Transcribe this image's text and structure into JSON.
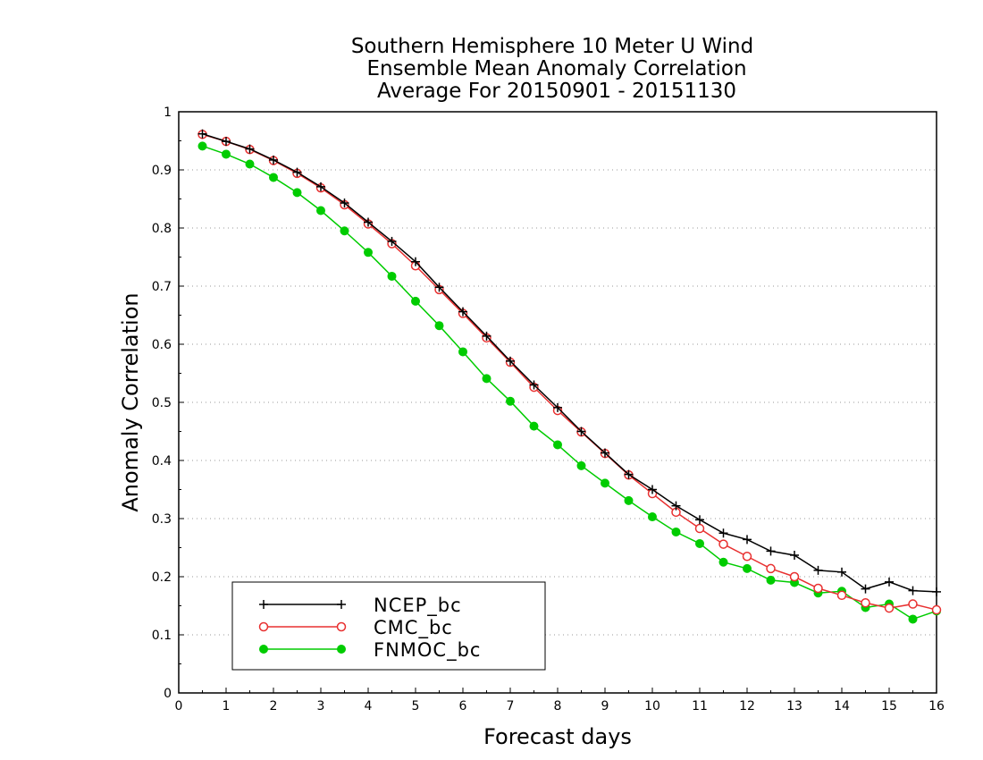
{
  "chart_data": {
    "type": "line",
    "title": [
      "Southern Hemisphere 10 Meter U Wind",
      "Ensemble Mean Anomaly Correlation",
      "Average For 20150901 - 20151130"
    ],
    "xlabel": "Forecast days",
    "ylabel": "Anomaly Correlation",
    "xlim": [
      0,
      16
    ],
    "ylim": [
      0,
      1
    ],
    "xticks": [
      "0",
      "1",
      "2",
      "3",
      "4",
      "5",
      "6",
      "7",
      "8",
      "9",
      "10",
      "11",
      "12",
      "13",
      "14",
      "15",
      "16"
    ],
    "yticks": [
      "0",
      "0.1",
      "0.2",
      "0.3",
      "0.4",
      "0.5",
      "0.6",
      "0.7",
      "0.8",
      "0.9",
      "1"
    ],
    "grid": "horizontal dotted",
    "legend_position": "bottom-left",
    "x": [
      0.5,
      1,
      1.5,
      2,
      2.5,
      3,
      3.5,
      4,
      4.5,
      5,
      5.5,
      6,
      6.5,
      7,
      7.5,
      8,
      8.5,
      9,
      9.5,
      10,
      10.5,
      11,
      11.5,
      12,
      12.5,
      13,
      13.5,
      14,
      14.5,
      15,
      15.5,
      16
    ],
    "series": [
      {
        "name": "NCEP_bc",
        "color": "#000000",
        "marker": "plus",
        "values": [
          0.962,
          0.949,
          0.936,
          0.917,
          0.896,
          0.871,
          0.843,
          0.81,
          0.777,
          0.742,
          0.698,
          0.656,
          0.614,
          0.571,
          0.53,
          0.491,
          0.45,
          0.413,
          0.376,
          0.35,
          0.322,
          0.298,
          0.275,
          0.264,
          0.244,
          0.237,
          0.211,
          0.208,
          0.179,
          0.191,
          0.176,
          0.174
        ]
      },
      {
        "name": "CMC_bc",
        "color": "#e83030",
        "marker": "open-circle",
        "values": [
          0.961,
          0.949,
          0.935,
          0.916,
          0.894,
          0.869,
          0.84,
          0.807,
          0.773,
          0.735,
          0.694,
          0.653,
          0.611,
          0.569,
          0.526,
          0.486,
          0.449,
          0.412,
          0.375,
          0.343,
          0.311,
          0.283,
          0.256,
          0.235,
          0.214,
          0.2,
          0.18,
          0.168,
          0.155,
          0.146,
          0.153,
          0.143
        ]
      },
      {
        "name": "FNMOC_bc",
        "color": "#00cc00",
        "marker": "filled-circle",
        "values": [
          0.941,
          0.927,
          0.91,
          0.887,
          0.861,
          0.83,
          0.795,
          0.758,
          0.717,
          0.674,
          0.632,
          0.587,
          0.541,
          0.502,
          0.459,
          0.427,
          0.391,
          0.361,
          0.331,
          0.303,
          0.277,
          0.257,
          0.225,
          0.214,
          0.194,
          0.19,
          0.172,
          0.175,
          0.147,
          0.153,
          0.127,
          0.141
        ]
      }
    ]
  }
}
